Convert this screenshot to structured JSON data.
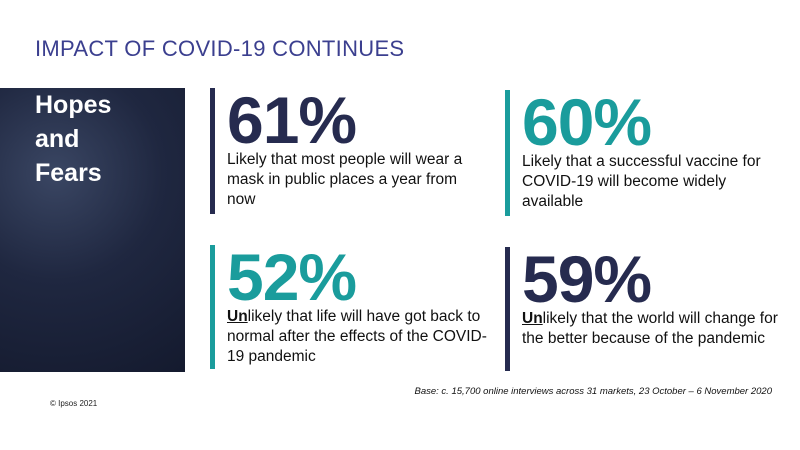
{
  "header": {
    "title": "IMPACT OF COVID-19 CONTINUES"
  },
  "panel": {
    "lines": [
      "Hopes",
      "and",
      "Fears"
    ]
  },
  "stats": [
    {
      "value": "61%",
      "text": "Likely that most people will wear a mask in public places a year from now"
    },
    {
      "value": "60%",
      "text": "Likely that a successful vaccine for COVID-19 will become widely available"
    },
    {
      "value": "52%",
      "emphasis": "Un",
      "text": "likely that life will have got back to normal after the effects of the COVID-19 pandemic"
    },
    {
      "value": "59%",
      "emphasis": "Un",
      "text": "likely that the world will change for the better because of the pandemic"
    }
  ],
  "footer": {
    "base": "Base: c. 15,700 online interviews across 31 markets,  23 October – 6 November 2020",
    "copyright": "© Ipsos 2021"
  }
}
